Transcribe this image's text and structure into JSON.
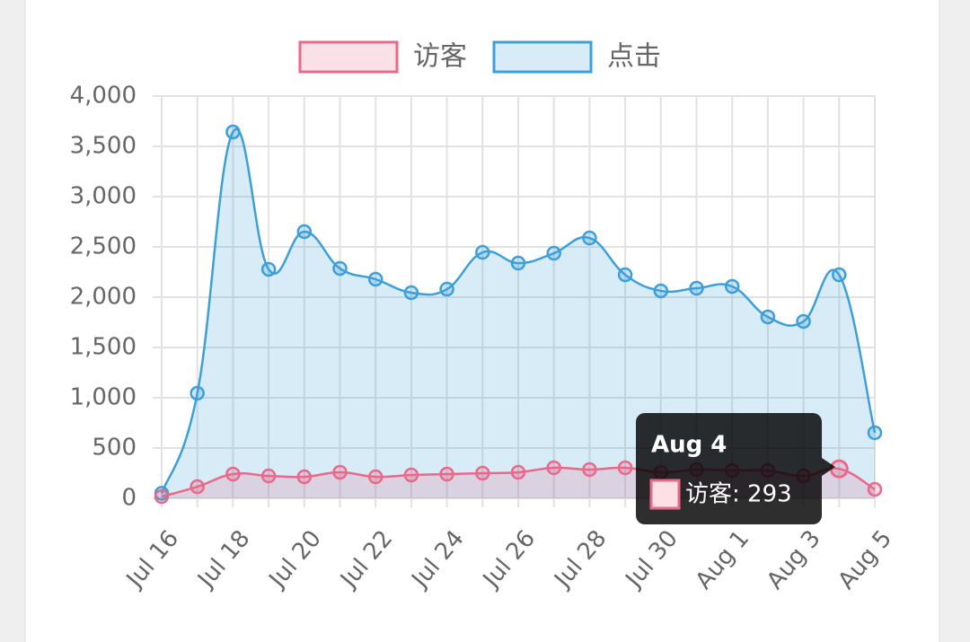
{
  "chart_data": {
    "type": "line",
    "categories": [
      "Jul 16",
      null,
      "Jul 18",
      null,
      "Jul 20",
      null,
      "Jul 22",
      null,
      "Jul 24",
      null,
      "Jul 26",
      null,
      "Jul 28",
      null,
      "Jul 30",
      null,
      "Aug 1",
      null,
      "Aug 3",
      null,
      "Aug 5"
    ],
    "series": [
      {
        "name": "访客",
        "color": "#e8698a",
        "values": [
          18,
          116,
          241,
          223,
          214,
          259,
          214,
          232,
          241,
          250,
          259,
          304,
          286,
          304,
          259,
          286,
          277,
          277,
          223,
          293,
          89
        ]
      },
      {
        "name": "点击",
        "color": "#3d9fd7",
        "values": [
          50,
          1045,
          3643,
          2277,
          2652,
          2286,
          2179,
          2045,
          2080,
          2446,
          2339,
          2437,
          2589,
          2223,
          2063,
          2089,
          2107,
          1804,
          1759,
          2223,
          652
        ]
      }
    ],
    "ylim": [
      0,
      4000
    ],
    "yticks": [
      0,
      500,
      {
        "value": 1000,
        "label": "1,000"
      },
      {
        "value": 1500,
        "label": "1,500"
      },
      {
        "value": 2000,
        "label": "2,000"
      },
      {
        "value": 2500,
        "label": "2,500"
      },
      {
        "value": 3000,
        "label": "3,000"
      },
      {
        "value": 3500,
        "label": "3,500"
      },
      {
        "value": 4000,
        "label": "4,000"
      }
    ],
    "grid": true,
    "legend": "top",
    "tooltip": {
      "title": "Aug 4",
      "label": "访客: 293"
    }
  }
}
